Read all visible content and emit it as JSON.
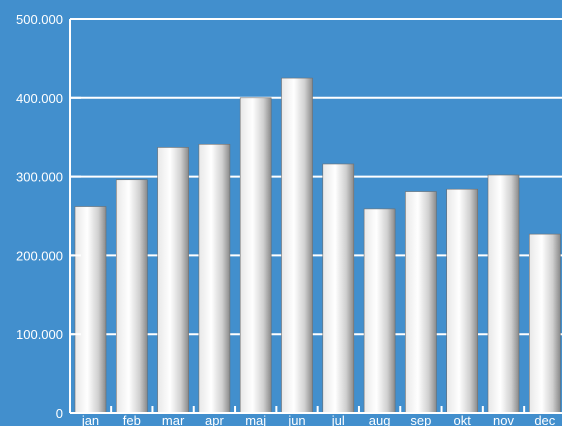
{
  "chart_data": {
    "type": "bar",
    "categories": [
      "jan",
      "feb",
      "mar",
      "apr",
      "maj",
      "jun",
      "jul",
      "aug",
      "sep",
      "okt",
      "nov",
      "dec"
    ],
    "values": [
      262000,
      296000,
      337000,
      341000,
      400000,
      425000,
      316000,
      259000,
      281000,
      284000,
      302000,
      227000
    ],
    "ylim": [
      0,
      500000
    ],
    "yticks": [
      0,
      100000,
      200000,
      300000,
      400000,
      500000
    ],
    "ytick_labels": [
      "0",
      "100.000",
      "200.000",
      "300.000",
      "400.000",
      "500.000"
    ],
    "title": "",
    "xlabel": "",
    "ylabel": "",
    "grid": true,
    "legend": false
  },
  "colors": {
    "background": "#428FCD",
    "grid": "#FFFFFF",
    "axis": "#FFFFFF",
    "bar_light": "#FFFFFF",
    "bar_dark": "#8A8A8A",
    "text": "#FFFFFF"
  }
}
